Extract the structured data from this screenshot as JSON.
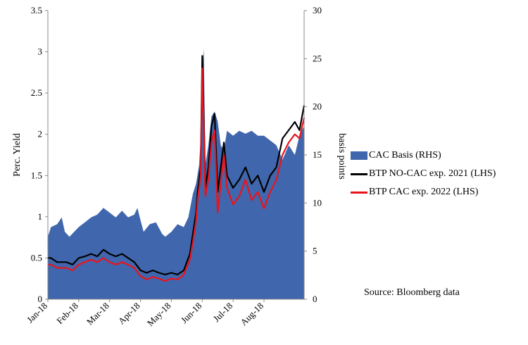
{
  "chart_data": {
    "type": "line",
    "source": "Source: Bloomberg data",
    "y_left_label": "Perc. Yield",
    "y_right_label": "basis points",
    "y_left_lim": [
      0,
      3.5
    ],
    "y_right_lim": [
      0,
      30
    ],
    "y_left_ticks": [
      "0",
      "0.5",
      "1",
      "1.5",
      "2",
      "2.5",
      "3",
      "3.5"
    ],
    "y_right_ticks": [
      "0",
      "5",
      "10",
      "15",
      "20",
      "25",
      "30"
    ],
    "x_ticks": [
      "Jan-18",
      "Feb-18",
      "Mar-18",
      "Apr-18",
      "May-18",
      "Jun-18",
      "Jul-18",
      "Aug-18"
    ],
    "x_lim": [
      0,
      8.3
    ],
    "grid": false,
    "legend_position": "right",
    "series": [
      {
        "name": "CAC Basis (RHS)",
        "type": "area",
        "axis": "right",
        "color": "#4067ad",
        "x": [
          0,
          0.1,
          0.3,
          0.45,
          0.55,
          0.7,
          0.85,
          1.0,
          1.2,
          1.4,
          1.6,
          1.8,
          2.0,
          2.2,
          2.4,
          2.6,
          2.8,
          2.9,
          3.0,
          3.1,
          3.3,
          3.5,
          3.7,
          3.8,
          4.0,
          4.2,
          4.4,
          4.55,
          4.7,
          4.8,
          4.9,
          4.97,
          5.0,
          5.05,
          5.1,
          5.2,
          5.3,
          5.4,
          5.5,
          5.6,
          5.7,
          5.8,
          6.0,
          6.2,
          6.4,
          6.6,
          6.8,
          7.0,
          7.2,
          7.4,
          7.6,
          7.8,
          8.0,
          8.15,
          8.3
        ],
        "values": [
          6.5,
          7.5,
          7.8,
          8.5,
          7.0,
          6.5,
          7.0,
          7.5,
          8.0,
          8.5,
          8.8,
          9.5,
          9.0,
          8.5,
          9.2,
          8.5,
          8.8,
          9.5,
          8.2,
          7.0,
          7.8,
          8.0,
          6.8,
          6.5,
          7.0,
          7.8,
          7.5,
          8.5,
          11.0,
          12.0,
          14.0,
          18.0,
          24.0,
          26.0,
          14.0,
          16.0,
          19.0,
          19.5,
          18.5,
          16.0,
          15.5,
          17.5,
          17.0,
          17.5,
          17.2,
          17.5,
          17.0,
          17.0,
          16.5,
          16.0,
          14.5,
          16.0,
          15.0,
          17.0,
          18.0
        ]
      },
      {
        "name": "BTP NO-CAC exp. 2021 (LHS)",
        "type": "line",
        "axis": "left",
        "color": "#000000",
        "x": [
          0,
          0.1,
          0.3,
          0.6,
          0.8,
          1.0,
          1.2,
          1.4,
          1.6,
          1.8,
          2.0,
          2.2,
          2.4,
          2.6,
          2.8,
          3.0,
          3.2,
          3.4,
          3.6,
          3.8,
          4.0,
          4.2,
          4.4,
          4.6,
          4.7,
          4.8,
          4.85,
          4.9,
          4.95,
          5.0,
          5.05,
          5.1,
          5.2,
          5.3,
          5.4,
          5.5,
          5.6,
          5.7,
          5.8,
          6.0,
          6.2,
          6.4,
          6.6,
          6.8,
          7.0,
          7.2,
          7.4,
          7.6,
          7.8,
          8.0,
          8.15,
          8.3
        ],
        "values": [
          0.5,
          0.5,
          0.45,
          0.45,
          0.42,
          0.5,
          0.52,
          0.55,
          0.52,
          0.6,
          0.55,
          0.52,
          0.55,
          0.5,
          0.45,
          0.35,
          0.32,
          0.35,
          0.32,
          0.3,
          0.32,
          0.3,
          0.35,
          0.55,
          0.8,
          1.05,
          1.3,
          1.45,
          1.6,
          2.95,
          2.2,
          1.35,
          1.6,
          2.1,
          2.25,
          1.3,
          1.6,
          1.9,
          1.5,
          1.35,
          1.45,
          1.6,
          1.4,
          1.5,
          1.3,
          1.5,
          1.6,
          1.95,
          2.05,
          2.15,
          2.05,
          2.35
        ]
      },
      {
        "name": "BTP CAC exp. 2022 (LHS)",
        "type": "line",
        "axis": "left",
        "color": "#e8141c",
        "x": [
          0,
          0.1,
          0.3,
          0.6,
          0.8,
          1.0,
          1.2,
          1.4,
          1.6,
          1.8,
          2.0,
          2.2,
          2.4,
          2.6,
          2.8,
          3.0,
          3.2,
          3.4,
          3.6,
          3.8,
          4.0,
          4.2,
          4.4,
          4.6,
          4.7,
          4.8,
          4.85,
          4.9,
          4.95,
          5.0,
          5.05,
          5.1,
          5.2,
          5.3,
          5.4,
          5.5,
          5.6,
          5.7,
          5.8,
          6.0,
          6.2,
          6.4,
          6.6,
          6.8,
          7.0,
          7.2,
          7.4,
          7.6,
          7.8,
          8.0,
          8.15,
          8.3
        ],
        "values": [
          0.42,
          0.42,
          0.38,
          0.38,
          0.35,
          0.42,
          0.45,
          0.48,
          0.45,
          0.5,
          0.45,
          0.42,
          0.45,
          0.42,
          0.38,
          0.28,
          0.24,
          0.27,
          0.25,
          0.22,
          0.25,
          0.24,
          0.3,
          0.48,
          0.7,
          0.95,
          1.2,
          1.35,
          1.5,
          2.8,
          2.05,
          1.25,
          1.45,
          1.9,
          2.05,
          1.05,
          1.4,
          1.75,
          1.35,
          1.15,
          1.25,
          1.45,
          1.2,
          1.3,
          1.1,
          1.3,
          1.45,
          1.75,
          1.9,
          2.0,
          1.95,
          2.2
        ]
      }
    ]
  }
}
